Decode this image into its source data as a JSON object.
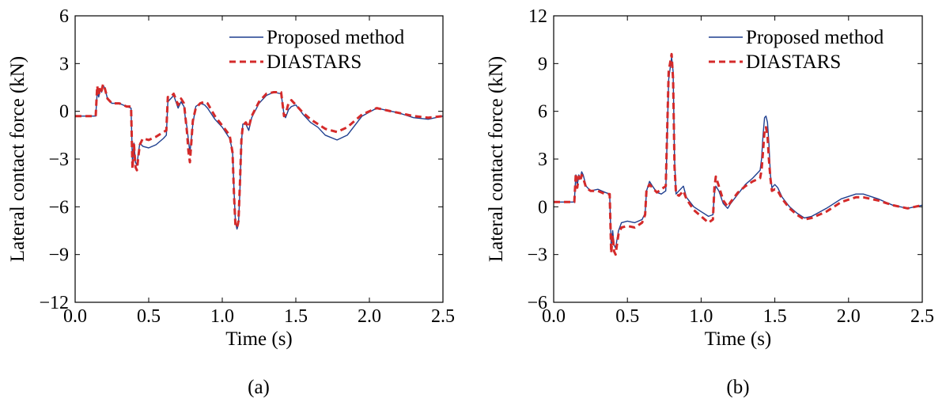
{
  "chart_data": [
    {
      "type": "line",
      "panel_label": "(a)",
      "xlabel": "Time (s)",
      "ylabel": "Lateral contact force (kN)",
      "xlim": [
        0.0,
        2.5
      ],
      "ylim": [
        -12,
        6
      ],
      "xticks": [
        0.0,
        0.5,
        1.0,
        1.5,
        2.0,
        2.5
      ],
      "xtick_labels": [
        "0.0",
        "0.5",
        "1.0",
        "1.5",
        "2.0",
        "2.5"
      ],
      "yticks": [
        -12,
        -9,
        -6,
        -3,
        0,
        3,
        6
      ],
      "ytick_labels": [
        "−12",
        "−9",
        "−6",
        "−3",
        "0",
        "3",
        "6"
      ],
      "grid": false,
      "legend_position": "top-right",
      "series": [
        {
          "name": "Proposed method",
          "color": "#1f3f8f",
          "style": "solid",
          "x": [
            0.0,
            0.14,
            0.15,
            0.16,
            0.17,
            0.18,
            0.19,
            0.2,
            0.22,
            0.25,
            0.3,
            0.35,
            0.38,
            0.39,
            0.4,
            0.41,
            0.42,
            0.43,
            0.44,
            0.46,
            0.5,
            0.55,
            0.6,
            0.62,
            0.63,
            0.65,
            0.67,
            0.7,
            0.72,
            0.74,
            0.75,
            0.76,
            0.77,
            0.78,
            0.8,
            0.82,
            0.85,
            0.88,
            0.9,
            0.95,
            1.0,
            1.05,
            1.07,
            1.08,
            1.09,
            1.1,
            1.11,
            1.12,
            1.13,
            1.14,
            1.16,
            1.18,
            1.2,
            1.25,
            1.3,
            1.35,
            1.4,
            1.42,
            1.43,
            1.45,
            1.47,
            1.5,
            1.55,
            1.6,
            1.65,
            1.7,
            1.78,
            1.85,
            1.95,
            2.05,
            2.1,
            2.2,
            2.3,
            2.4,
            2.5
          ],
          "y": [
            -0.3,
            -0.3,
            1.2,
            0.9,
            1.4,
            1.2,
            1.6,
            1.5,
            0.8,
            0.5,
            0.5,
            0.3,
            0.2,
            -3.3,
            -2.0,
            -3.2,
            -3.4,
            -2.6,
            -2.0,
            -2.2,
            -2.3,
            -2.1,
            -1.7,
            -1.5,
            0.6,
            0.8,
            1.0,
            0.2,
            0.6,
            0.3,
            -0.5,
            -1.0,
            -1.8,
            -2.6,
            -0.8,
            0.3,
            0.5,
            0.4,
            0.2,
            -0.5,
            -1.0,
            -1.7,
            -2.5,
            -5.0,
            -7.0,
            -7.4,
            -7.1,
            -5.0,
            -2.0,
            -0.8,
            -0.8,
            -1.2,
            -0.4,
            0.5,
            1.0,
            1.2,
            1.1,
            -0.2,
            -0.4,
            0.1,
            0.3,
            0.4,
            -0.2,
            -0.7,
            -1.0,
            -1.5,
            -1.8,
            -1.5,
            -0.3,
            0.2,
            0.1,
            -0.1,
            -0.4,
            -0.5,
            -0.3
          ]
        },
        {
          "name": "DIASTARS",
          "color": "#d42a2a",
          "style": "dashed",
          "x": [
            0.0,
            0.14,
            0.15,
            0.16,
            0.17,
            0.18,
            0.19,
            0.2,
            0.22,
            0.25,
            0.3,
            0.35,
            0.38,
            0.39,
            0.4,
            0.41,
            0.42,
            0.43,
            0.44,
            0.46,
            0.5,
            0.55,
            0.6,
            0.62,
            0.63,
            0.65,
            0.67,
            0.7,
            0.72,
            0.74,
            0.75,
            0.76,
            0.77,
            0.78,
            0.8,
            0.82,
            0.85,
            0.88,
            0.9,
            0.95,
            1.0,
            1.05,
            1.07,
            1.08,
            1.09,
            1.1,
            1.11,
            1.12,
            1.13,
            1.14,
            1.16,
            1.18,
            1.2,
            1.25,
            1.3,
            1.35,
            1.4,
            1.42,
            1.43,
            1.45,
            1.47,
            1.5,
            1.55,
            1.6,
            1.65,
            1.7,
            1.78,
            1.85,
            1.95,
            2.05,
            2.1,
            2.2,
            2.3,
            2.4,
            2.5
          ],
          "y": [
            -0.3,
            -0.3,
            1.6,
            1.0,
            1.5,
            1.3,
            1.7,
            1.5,
            0.8,
            0.5,
            0.5,
            0.3,
            0.3,
            -3.6,
            -2.1,
            -3.5,
            -3.7,
            -2.8,
            -2.1,
            -1.7,
            -1.8,
            -1.6,
            -1.3,
            -1.2,
            0.9,
            0.9,
            1.1,
            0.4,
            0.8,
            0.5,
            -0.4,
            -1.3,
            -2.5,
            -3.2,
            -0.6,
            0.2,
            0.5,
            0.6,
            0.5,
            -0.3,
            -0.9,
            -1.5,
            -2.6,
            -5.3,
            -7.2,
            -7.3,
            -6.9,
            -4.6,
            -1.8,
            -0.9,
            -0.7,
            -1.0,
            -0.3,
            0.6,
            1.1,
            1.2,
            1.2,
            -0.3,
            -0.2,
            0.5,
            0.7,
            0.4,
            -0.1,
            -0.5,
            -0.8,
            -1.1,
            -1.3,
            -1.0,
            -0.2,
            0.2,
            0.1,
            -0.1,
            -0.3,
            -0.4,
            -0.3
          ]
        }
      ]
    },
    {
      "type": "line",
      "panel_label": "(b)",
      "xlabel": "Time (s)",
      "ylabel": "Lateral contact force (kN)",
      "xlim": [
        0.0,
        2.5
      ],
      "ylim": [
        -6,
        12
      ],
      "xticks": [
        0.0,
        0.5,
        1.0,
        1.5,
        2.0,
        2.5
      ],
      "xtick_labels": [
        "0.0",
        "0.5",
        "1.0",
        "1.5",
        "2.0",
        "2.5"
      ],
      "yticks": [
        -6,
        -3,
        0,
        3,
        6,
        9,
        12
      ],
      "ytick_labels": [
        "−6",
        "−3",
        "0",
        "3",
        "6",
        "9",
        "12"
      ],
      "grid": false,
      "legend_position": "top-right",
      "series": [
        {
          "name": "Proposed method",
          "color": "#1f3f8f",
          "style": "solid",
          "x": [
            0.0,
            0.14,
            0.15,
            0.16,
            0.17,
            0.18,
            0.19,
            0.2,
            0.22,
            0.25,
            0.3,
            0.35,
            0.38,
            0.39,
            0.4,
            0.41,
            0.42,
            0.43,
            0.44,
            0.46,
            0.5,
            0.55,
            0.6,
            0.62,
            0.63,
            0.65,
            0.67,
            0.7,
            0.73,
            0.76,
            0.78,
            0.8,
            0.81,
            0.82,
            0.83,
            0.85,
            0.88,
            0.9,
            0.95,
            1.0,
            1.05,
            1.08,
            1.09,
            1.1,
            1.12,
            1.15,
            1.18,
            1.2,
            1.25,
            1.3,
            1.35,
            1.4,
            1.41,
            1.42,
            1.43,
            1.44,
            1.45,
            1.46,
            1.47,
            1.48,
            1.5,
            1.52,
            1.55,
            1.6,
            1.65,
            1.7,
            1.75,
            1.85,
            1.95,
            2.05,
            2.1,
            2.2,
            2.3,
            2.4,
            2.45,
            2.5
          ],
          "y": [
            0.3,
            0.3,
            2.0,
            1.3,
            2.0,
            1.8,
            2.2,
            2.0,
            1.3,
            1.0,
            1.1,
            0.9,
            0.8,
            -2.5,
            -1.5,
            -2.4,
            -2.6,
            -2.0,
            -1.5,
            -1.0,
            -0.9,
            -1.0,
            -0.8,
            -0.4,
            1.0,
            1.6,
            1.3,
            0.9,
            0.8,
            1.0,
            8.0,
            9.4,
            8.5,
            3.0,
            0.8,
            1.0,
            1.3,
            0.6,
            0.0,
            -0.3,
            -0.6,
            -0.5,
            0.8,
            1.3,
            1.0,
            0.2,
            -0.1,
            0.2,
            0.8,
            1.4,
            1.8,
            2.3,
            3.0,
            4.5,
            5.6,
            5.7,
            5.3,
            4.0,
            2.0,
            1.2,
            1.4,
            1.2,
            0.6,
            0.0,
            -0.4,
            -0.7,
            -0.6,
            -0.1,
            0.5,
            0.8,
            0.8,
            0.5,
            0.1,
            -0.1,
            0.0,
            0.1
          ]
        },
        {
          "name": "DIASTARS",
          "color": "#d42a2a",
          "style": "dashed",
          "x": [
            0.0,
            0.14,
            0.15,
            0.16,
            0.17,
            0.18,
            0.19,
            0.2,
            0.22,
            0.25,
            0.3,
            0.35,
            0.38,
            0.39,
            0.4,
            0.41,
            0.42,
            0.43,
            0.44,
            0.46,
            0.5,
            0.55,
            0.6,
            0.62,
            0.63,
            0.65,
            0.67,
            0.7,
            0.73,
            0.76,
            0.78,
            0.8,
            0.81,
            0.82,
            0.83,
            0.85,
            0.88,
            0.9,
            0.95,
            1.0,
            1.05,
            1.08,
            1.09,
            1.1,
            1.12,
            1.15,
            1.18,
            1.2,
            1.25,
            1.3,
            1.35,
            1.4,
            1.41,
            1.42,
            1.43,
            1.44,
            1.45,
            1.46,
            1.47,
            1.48,
            1.5,
            1.52,
            1.55,
            1.6,
            1.65,
            1.7,
            1.75,
            1.85,
            1.95,
            2.05,
            2.1,
            2.2,
            2.3,
            2.4,
            2.45,
            2.5
          ],
          "y": [
            0.3,
            0.3,
            2.1,
            1.2,
            1.9,
            1.6,
            2.0,
            1.8,
            1.2,
            1.0,
            1.0,
            0.8,
            0.8,
            -2.9,
            -1.8,
            -2.8,
            -3.0,
            -2.3,
            -1.7,
            -1.3,
            -1.2,
            -1.3,
            -1.0,
            -0.5,
            1.1,
            1.4,
            1.2,
            0.9,
            1.1,
            1.3,
            8.5,
            9.6,
            8.0,
            2.5,
            0.8,
            0.7,
            1.0,
            0.5,
            -0.2,
            -0.6,
            -1.0,
            -0.8,
            1.2,
            1.9,
            1.3,
            0.4,
            0.0,
            0.3,
            0.9,
            1.3,
            1.6,
            1.8,
            2.3,
            3.5,
            4.8,
            5.0,
            4.5,
            3.0,
            1.8,
            1.0,
            1.1,
            1.0,
            0.5,
            -0.1,
            -0.5,
            -0.8,
            -0.7,
            -0.3,
            0.3,
            0.6,
            0.6,
            0.4,
            0.1,
            -0.1,
            0.0,
            0.1
          ]
        }
      ]
    }
  ]
}
